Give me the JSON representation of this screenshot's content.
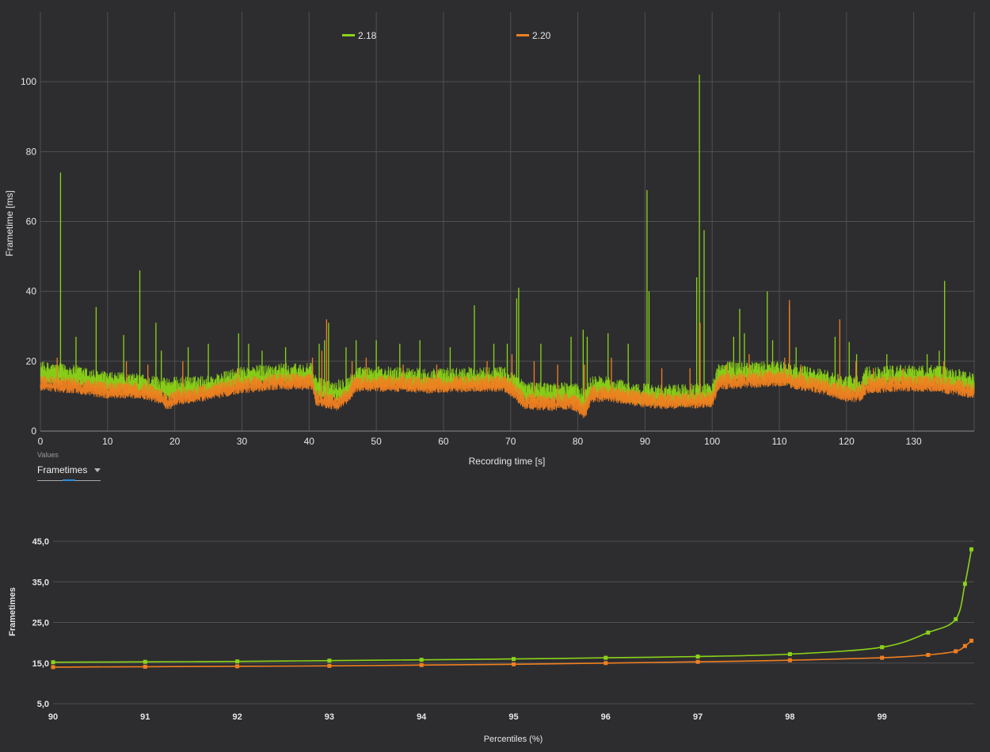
{
  "colors": {
    "background": "#2d2d30",
    "grid": "#505052",
    "series_218": "#8bd417",
    "series_220": "#f07f20",
    "dropdown_accent": "#2b8bd6"
  },
  "controls": {
    "values_label": "Values",
    "values_selected": "Frametimes"
  },
  "chart_data": [
    {
      "type": "line",
      "xlabel": "Recording time [s]",
      "ylabel": "Frametime [ms]",
      "xlim": [
        0,
        139
      ],
      "ylim": [
        0,
        120
      ],
      "x_ticks": [
        0,
        10,
        20,
        30,
        40,
        50,
        60,
        70,
        80,
        90,
        100,
        110,
        120,
        130
      ],
      "y_ticks": [
        0,
        20,
        40,
        60,
        80,
        100
      ],
      "grid": true,
      "legend": "top",
      "series": [
        {
          "name": "2.18",
          "color": "#8bd417",
          "baseline": [
            [
              0,
              16
            ],
            [
              5,
              15
            ],
            [
              10,
              13
            ],
            [
              15,
              12.5
            ],
            [
              19,
              11.5
            ],
            [
              25,
              12
            ],
            [
              28,
              13.5
            ],
            [
              30,
              14.5
            ],
            [
              35,
              15.5
            ],
            [
              40.5,
              15.5
            ],
            [
              41,
              12
            ],
            [
              43,
              10.5
            ],
            [
              46,
              12
            ],
            [
              47,
              14.5
            ],
            [
              52,
              14.5
            ],
            [
              58,
              14
            ],
            [
              65,
              14.5
            ],
            [
              69,
              14.5
            ],
            [
              70.5,
              13
            ],
            [
              72,
              10.5
            ],
            [
              76,
              10
            ],
            [
              79,
              10
            ],
            [
              80,
              9.5
            ],
            [
              81,
              8
            ],
            [
              82,
              12
            ],
            [
              85,
              11.5
            ],
            [
              88,
              10
            ],
            [
              92,
              9.5
            ],
            [
              96,
              9.5
            ],
            [
              100,
              10
            ],
            [
              101,
              16
            ],
            [
              105,
              16
            ],
            [
              110,
              16
            ],
            [
              113,
              15
            ],
            [
              117,
              13.5
            ],
            [
              120,
              12
            ],
            [
              122,
              12
            ],
            [
              123,
              14.5
            ],
            [
              128,
              15
            ],
            [
              133,
              15
            ],
            [
              136,
              14
            ],
            [
              139,
              13
            ]
          ],
          "noise": 4,
          "spikes": [
            [
              3,
              74
            ],
            [
              5.3,
              27
            ],
            [
              8.3,
              35.5
            ],
            [
              12.4,
              27.5
            ],
            [
              14.8,
              46
            ],
            [
              17.2,
              31
            ],
            [
              18,
              23
            ],
            [
              22,
              24
            ],
            [
              25,
              25
            ],
            [
              29.5,
              28
            ],
            [
              31,
              25
            ],
            [
              33,
              23
            ],
            [
              36.5,
              24
            ],
            [
              41.5,
              25
            ],
            [
              42.3,
              26
            ],
            [
              42.9,
              31
            ],
            [
              45.5,
              24
            ],
            [
              47,
              26
            ],
            [
              50,
              26
            ],
            [
              53.5,
              25
            ],
            [
              56.5,
              26
            ],
            [
              61,
              24
            ],
            [
              64.6,
              36
            ],
            [
              67.5,
              25
            ],
            [
              69.5,
              25
            ],
            [
              70.9,
              38
            ],
            [
              71.2,
              41
            ],
            [
              74.5,
              25
            ],
            [
              79,
              27
            ],
            [
              80.8,
              29
            ],
            [
              81.4,
              27
            ],
            [
              84.5,
              28
            ],
            [
              87.5,
              25
            ],
            [
              90.3,
              69
            ],
            [
              90.6,
              40
            ],
            [
              97.7,
              44
            ],
            [
              98.1,
              102
            ],
            [
              98.8,
              57.5
            ],
            [
              103.2,
              27
            ],
            [
              104.1,
              35
            ],
            [
              104.8,
              28
            ],
            [
              108.2,
              40
            ],
            [
              109,
              26
            ],
            [
              111.5,
              36
            ],
            [
              112.5,
              24
            ],
            [
              118.3,
              27
            ],
            [
              120.4,
              25.5
            ],
            [
              121.5,
              22
            ],
            [
              126,
              22
            ],
            [
              132,
              22
            ],
            [
              133.8,
              23
            ],
            [
              134.6,
              43
            ]
          ]
        },
        {
          "name": "2.20",
          "color": "#f07f20",
          "baseline": [
            [
              0,
              13
            ],
            [
              5,
              12.5
            ],
            [
              10,
              11
            ],
            [
              15,
              11
            ],
            [
              18,
              9.5
            ],
            [
              19,
              7.5
            ],
            [
              20,
              9
            ],
            [
              25,
              10.5
            ],
            [
              30,
              12.5
            ],
            [
              35,
              13.5
            ],
            [
              40.5,
              13.5
            ],
            [
              41,
              9
            ],
            [
              43,
              8
            ],
            [
              44,
              7.5
            ],
            [
              46,
              10
            ],
            [
              47,
              13
            ],
            [
              52,
              13
            ],
            [
              58,
              12.5
            ],
            [
              65,
              13
            ],
            [
              69,
              13
            ],
            [
              70.5,
              11
            ],
            [
              72,
              8
            ],
            [
              76,
              7.5
            ],
            [
              79,
              8
            ],
            [
              80,
              7
            ],
            [
              81,
              5
            ],
            [
              82,
              10
            ],
            [
              85,
              10
            ],
            [
              88,
              9
            ],
            [
              92,
              8
            ],
            [
              96,
              8
            ],
            [
              100,
              8.5
            ],
            [
              101,
              13.5
            ],
            [
              105,
              14
            ],
            [
              110,
              14.5
            ],
            [
              113,
              13.5
            ],
            [
              117,
              12
            ],
            [
              120,
              10
            ],
            [
              122,
              10
            ],
            [
              123,
              12.5
            ],
            [
              128,
              13
            ],
            [
              133,
              13
            ],
            [
              136,
              12
            ],
            [
              139,
              11
            ]
          ],
          "noise": 3,
          "spikes": [
            [
              2.5,
              21
            ],
            [
              12.8,
              20
            ],
            [
              16,
              19
            ],
            [
              21.2,
              20
            ],
            [
              29.4,
              18
            ],
            [
              40.5,
              21
            ],
            [
              41.9,
              23
            ],
            [
              42.6,
              32
            ],
            [
              46.4,
              20
            ],
            [
              48.5,
              21
            ],
            [
              54,
              19
            ],
            [
              59,
              19
            ],
            [
              66.5,
              20
            ],
            [
              70.2,
              22
            ],
            [
              73.5,
              20
            ],
            [
              77,
              19
            ],
            [
              81,
              19
            ],
            [
              85,
              21
            ],
            [
              92.5,
              18
            ],
            [
              96.7,
              18
            ],
            [
              98.2,
              31
            ],
            [
              102.2,
              19
            ],
            [
              105.5,
              22
            ],
            [
              110.8,
              21
            ],
            [
              111.5,
              37.5
            ],
            [
              113.2,
              19
            ],
            [
              119,
              32
            ],
            [
              121.4,
              20
            ],
            [
              124,
              18
            ],
            [
              128.4,
              18
            ],
            [
              134.5,
              20
            ]
          ]
        }
      ]
    },
    {
      "type": "line",
      "xlabel": "Percentiles (%)",
      "ylabel": "Frametimes",
      "xlim": [
        90,
        100
      ],
      "ylim": [
        5,
        45
      ],
      "x_ticks": [
        "90",
        "91",
        "92",
        "93",
        "94",
        "95",
        "96",
        "97",
        "98",
        "99"
      ],
      "y_ticks": [
        "5,0",
        "15,0",
        "25,0",
        "35,0",
        "45,0"
      ],
      "grid": true,
      "series": [
        {
          "name": "2.18",
          "color": "#8bd417",
          "x": [
            90,
            91,
            92,
            93,
            94,
            95,
            96,
            97,
            98,
            99,
            99.5,
            99.8,
            99.9,
            99.97
          ],
          "y": [
            15.2,
            15.3,
            15.4,
            15.6,
            15.8,
            16.0,
            16.3,
            16.6,
            17.2,
            18.9,
            22.5,
            25.8,
            34.5,
            43.0
          ]
        },
        {
          "name": "2.20",
          "color": "#f07f20",
          "x": [
            90,
            91,
            92,
            93,
            94,
            95,
            96,
            97,
            98,
            99,
            99.5,
            99.8,
            99.9,
            99.97
          ],
          "y": [
            14.0,
            14.1,
            14.2,
            14.3,
            14.5,
            14.7,
            15.0,
            15.3,
            15.7,
            16.3,
            17.0,
            17.9,
            19.2,
            20.5
          ]
        }
      ]
    }
  ]
}
